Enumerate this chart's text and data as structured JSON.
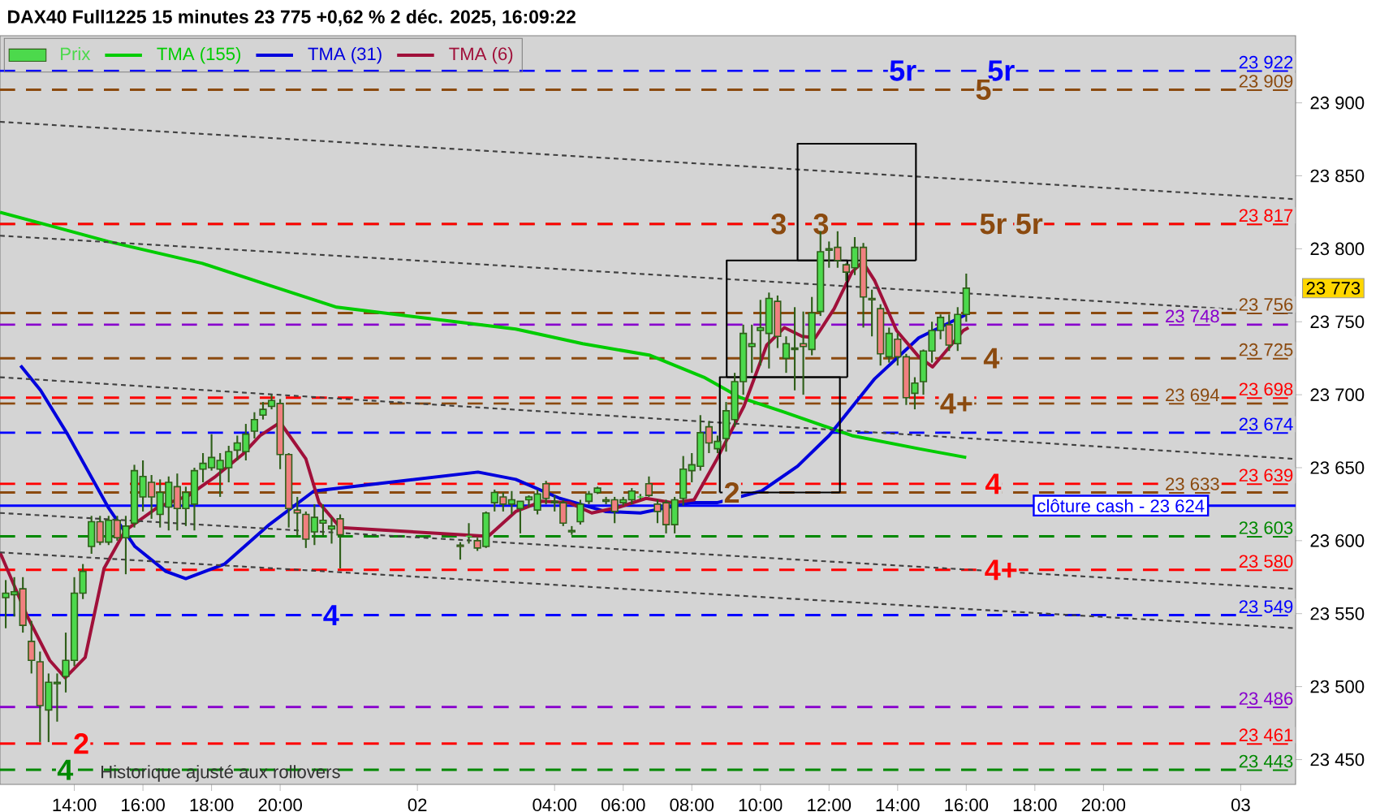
{
  "chart_data": {
    "type": "candlestick",
    "title": "DAX40 Full1225 15 minutes 23 775 +0,62 % 2 déc. 2025, 16:09:22",
    "xlim": [
      "2025-12-01T11:50",
      "2025-12-03T01:36"
    ],
    "ylim": [
      23433,
      23946
    ],
    "xticks": [
      {
        "value": "2025-12-01T14:00",
        "label": "14:00"
      },
      {
        "value": "2025-12-01T16:00",
        "label": "16:00"
      },
      {
        "value": "2025-12-01T18:00",
        "label": "18:00"
      },
      {
        "value": "2025-12-01T20:00",
        "label": "20:00"
      },
      {
        "value": "2025-12-02",
        "label": "02"
      },
      {
        "value": "2025-12-02T04:00",
        "label": "04:00"
      },
      {
        "value": "2025-12-02T06:00",
        "label": "06:00"
      },
      {
        "value": "2025-12-02T08:00",
        "label": "08:00"
      },
      {
        "value": "2025-12-02T10:00",
        "label": "10:00"
      },
      {
        "value": "2025-12-02T12:00",
        "label": "12:00"
      },
      {
        "value": "2025-12-02T14:00",
        "label": "14:00"
      },
      {
        "value": "2025-12-02T16:00",
        "label": "16:00"
      },
      {
        "value": "2025-12-02T18:00",
        "label": "18:00"
      },
      {
        "value": "2025-12-02T20:00",
        "label": "20:00"
      },
      {
        "value": "2025-12-03",
        "label": "03"
      }
    ],
    "yticks": [
      {
        "value": 23450,
        "label": "23 450"
      },
      {
        "value": 23500,
        "label": "23 500"
      },
      {
        "value": 23550,
        "label": "23 550"
      },
      {
        "value": 23600,
        "label": "23 600"
      },
      {
        "value": 23650,
        "label": "23 650"
      },
      {
        "value": 23700,
        "label": "23 700"
      },
      {
        "value": 23750,
        "label": "23 750"
      },
      {
        "value": 23800,
        "label": "23 800"
      },
      {
        "value": 23850,
        "label": "23 850"
      },
      {
        "value": 23900,
        "label": "23 900"
      }
    ],
    "legend": "top left",
    "series": [
      {
        "name": "Prix",
        "type": "candlestick",
        "color": "#4cd94c",
        "x": [
          "2025-12-01T12:00",
          "2025-12-01T12:15",
          "2025-12-01T12:30",
          "2025-12-01T12:45",
          "2025-12-01T13:00",
          "2025-12-01T13:15",
          "2025-12-01T13:30",
          "2025-12-01T13:45",
          "2025-12-01T14:00",
          "2025-12-01T14:15",
          "2025-12-01T14:30",
          "2025-12-01T14:45",
          "2025-12-01T15:00",
          "2025-12-01T15:15",
          "2025-12-01T15:30",
          "2025-12-01T15:45",
          "2025-12-01T16:00",
          "2025-12-01T16:15",
          "2025-12-01T16:30",
          "2025-12-01T16:45",
          "2025-12-01T17:00",
          "2025-12-01T17:15",
          "2025-12-01T17:30",
          "2025-12-01T17:45",
          "2025-12-01T18:00",
          "2025-12-01T18:15",
          "2025-12-01T18:30",
          "2025-12-01T18:45",
          "2025-12-01T19:00",
          "2025-12-01T19:15",
          "2025-12-01T19:30",
          "2025-12-01T19:45",
          "2025-12-01T20:00",
          "2025-12-01T20:15",
          "2025-12-01T20:30",
          "2025-12-01T20:45",
          "2025-12-01T21:00",
          "2025-12-01T21:15",
          "2025-12-01T21:30",
          "2025-12-01T21:45",
          "2025-12-02T01:15",
          "2025-12-02T01:30",
          "2025-12-02T01:45",
          "2025-12-02T02:00",
          "2025-12-02T02:15",
          "2025-12-02T02:30",
          "2025-12-02T02:45",
          "2025-12-02T03:00",
          "2025-12-02T03:15",
          "2025-12-02T03:30",
          "2025-12-02T03:45",
          "2025-12-02T04:00",
          "2025-12-02T04:15",
          "2025-12-02T04:30",
          "2025-12-02T04:45",
          "2025-12-02T05:00",
          "2025-12-02T05:15",
          "2025-12-02T05:30",
          "2025-12-02T05:45",
          "2025-12-02T06:00",
          "2025-12-02T06:15",
          "2025-12-02T06:30",
          "2025-12-02T06:45",
          "2025-12-02T07:00",
          "2025-12-02T07:15",
          "2025-12-02T07:30",
          "2025-12-02T07:45",
          "2025-12-02T08:00",
          "2025-12-02T08:15",
          "2025-12-02T08:30",
          "2025-12-02T08:45",
          "2025-12-02T09:00",
          "2025-12-02T09:15",
          "2025-12-02T09:30",
          "2025-12-02T09:45",
          "2025-12-02T10:00",
          "2025-12-02T10:15",
          "2025-12-02T10:30",
          "2025-12-02T10:45",
          "2025-12-02T11:00",
          "2025-12-02T11:15",
          "2025-12-02T11:30",
          "2025-12-02T11:45",
          "2025-12-02T12:00",
          "2025-12-02T12:15",
          "2025-12-02T12:30",
          "2025-12-02T12:45",
          "2025-12-02T13:00",
          "2025-12-02T13:15",
          "2025-12-02T13:30",
          "2025-12-02T13:45",
          "2025-12-02T14:00",
          "2025-12-02T14:15",
          "2025-12-02T14:30",
          "2025-12-02T14:45",
          "2025-12-02T15:00",
          "2025-12-02T15:15",
          "2025-12-02T15:30",
          "2025-12-02T15:45",
          "2025-12-02T16:00"
        ],
        "colors": [
          "#4cd94c",
          "#4cd94c",
          "#f08080",
          "#f08080",
          "#f08080",
          "#4cd94c",
          "#4cd94c",
          "#4cd94c",
          "#4cd94c",
          "#4cd94c",
          "#4cd94c",
          "#f08080",
          "#4cd94c",
          "#f08080",
          "#4cd94c",
          "#4cd94c",
          "#4cd94c",
          "#f08080",
          "#4cd94c",
          "#4cd94c",
          "#f08080",
          "#4cd94c",
          "#4cd94c",
          "#4cd94c",
          "#4cd94c",
          "#4cd94c",
          "#4cd94c",
          "#4cd94c",
          "#4cd94c",
          "#4cd94c",
          "#4cd94c",
          "#4cd94c",
          "#f08080",
          "#f08080",
          "#f08080",
          "#f08080",
          "#4cd94c",
          "#4cd94c",
          "#4cd94c",
          "#f08080",
          "#f08080",
          "#4cd94c",
          "#f08080",
          "#4cd94c",
          "#4cd94c",
          "#f08080",
          "#4cd94c",
          "#4cd94c",
          "#4cd94c",
          "#4cd94c",
          "#f08080",
          "#f08080",
          "#f08080",
          "#4cd94c",
          "#4cd94c",
          "#4cd94c",
          "#4cd94c",
          "#f08080",
          "#f08080",
          "#4cd94c",
          "#4cd94c",
          "#4cd94c",
          "#f08080",
          "#f08080",
          "#f08080",
          "#4cd94c",
          "#4cd94c",
          "#4cd94c",
          "#4cd94c",
          "#f08080",
          "#4cd94c",
          "#4cd94c",
          "#4cd94c",
          "#4cd94c",
          "#4cd94c",
          "#4cd94c",
          "#4cd94c",
          "#f08080",
          "#4cd94c",
          "#4cd94c",
          "#f08080",
          "#4cd94c",
          "#4cd94c",
          "#4cd94c",
          "#f08080",
          "#f08080",
          "#4cd94c",
          "#f08080",
          "#f08080",
          "#f08080",
          "#4cd94c",
          "#f08080",
          "#f08080",
          "#4cd94c",
          "#4cd94c",
          "#4cd94c",
          "#4cd94c",
          "#f08080",
          "#4cd94c",
          "#4cd94c"
        ],
        "ohlc": [
          [
            23561,
            23573,
            23540,
            23564
          ],
          [
            23563,
            23575,
            23548,
            23565
          ],
          [
            23567,
            23575,
            23537,
            23542
          ],
          [
            23531,
            23545,
            23509,
            23518
          ],
          [
            23517,
            23524,
            23462,
            23487
          ],
          [
            23484,
            23509,
            23462,
            23503
          ],
          [
            23502,
            23509,
            23476,
            23503
          ],
          [
            23507,
            23537,
            23496,
            23518
          ],
          [
            23518,
            23575,
            23514,
            23564
          ],
          [
            23564,
            23584,
            23560,
            23579
          ],
          [
            23596,
            23617,
            23591,
            23613
          ],
          [
            23613,
            23617,
            23597,
            23599
          ],
          [
            23599,
            23617,
            23597,
            23614
          ],
          [
            23614,
            23617,
            23600,
            23602
          ],
          [
            23602,
            23617,
            23577,
            23610
          ],
          [
            23612,
            23652,
            23609,
            23648
          ],
          [
            23630,
            23655,
            23620,
            23644
          ],
          [
            23640,
            23645,
            23615,
            23630
          ],
          [
            23618,
            23642,
            23609,
            23633
          ],
          [
            23623,
            23644,
            23607,
            23640
          ],
          [
            23637,
            23646,
            23607,
            23622
          ],
          [
            23622,
            23637,
            23610,
            23633
          ],
          [
            23625,
            23650,
            23607,
            23648
          ],
          [
            23649,
            23660,
            23640,
            23653
          ],
          [
            23650,
            23673,
            23648,
            23657
          ],
          [
            23649,
            23660,
            23630,
            23655
          ],
          [
            23650,
            23665,
            23640,
            23661
          ],
          [
            23662,
            23672,
            23655,
            23667
          ],
          [
            23661,
            23680,
            23655,
            23673
          ],
          [
            23675,
            23688,
            23670,
            23683
          ],
          [
            23686,
            23695,
            23683,
            23690
          ],
          [
            23692,
            23700,
            23690,
            23696
          ],
          [
            23694,
            23697,
            23649,
            23659
          ],
          [
            23659,
            23660,
            23609,
            23622
          ],
          [
            23621,
            23630,
            23603,
            23619
          ],
          [
            23618,
            23620,
            23595,
            23601
          ],
          [
            23606,
            23625,
            23597,
            23616
          ],
          [
            23612,
            23625,
            23603,
            23614
          ],
          [
            23608,
            23616,
            23598,
            23610
          ],
          [
            23615,
            23618,
            23581,
            23604
          ],
          [
            23597,
            23599,
            23587,
            23596
          ],
          [
            23603,
            23612,
            23598,
            23603
          ],
          [
            23600,
            23602,
            23593,
            23595
          ],
          [
            23596,
            23620,
            23595,
            23619
          ],
          [
            23626,
            23635,
            23620,
            23633
          ],
          [
            23630,
            23633,
            23620,
            23625
          ],
          [
            23625,
            23634,
            23618,
            23628
          ],
          [
            23622,
            23627,
            23605,
            23627
          ],
          [
            23628,
            23631,
            23623,
            23630
          ],
          [
            23621,
            23635,
            23618,
            23632
          ],
          [
            23639,
            23641,
            23625,
            23629
          ],
          [
            23627,
            23631,
            23620,
            23626
          ],
          [
            23626,
            23628,
            23610,
            23612
          ],
          [
            23606,
            23610,
            23604,
            23607
          ],
          [
            23613,
            23628,
            23611,
            23625
          ],
          [
            23627,
            23634,
            23625,
            23632
          ],
          [
            23633,
            23637,
            23632,
            23636
          ],
          [
            23628,
            23630,
            23625,
            23627
          ],
          [
            23628,
            23630,
            23612,
            23620
          ],
          [
            23626,
            23630,
            23624,
            23628
          ],
          [
            23628,
            23636,
            23625,
            23634
          ],
          [
            23630,
            23632,
            23628,
            23630
          ],
          [
            23639,
            23644,
            23630,
            23631
          ],
          [
            23625,
            23628,
            23612,
            23620
          ],
          [
            23626,
            23628,
            23605,
            23611
          ],
          [
            23611,
            23630,
            23605,
            23628
          ],
          [
            23629,
            23658,
            23624,
            23649
          ],
          [
            23648,
            23660,
            23640,
            23652
          ],
          [
            23651,
            23686,
            23648,
            23674
          ],
          [
            23678,
            23682,
            23660,
            23667
          ],
          [
            23663,
            23672,
            23660,
            23668
          ],
          [
            23670,
            23695,
            23661,
            23689
          ],
          [
            23683,
            23715,
            23678,
            23709
          ],
          [
            23709,
            23748,
            23700,
            23742
          ],
          [
            23733,
            23748,
            23715,
            23735
          ],
          [
            23744,
            23765,
            23720,
            23746
          ],
          [
            23742,
            23770,
            23718,
            23766
          ],
          [
            23764,
            23768,
            23732,
            23740
          ],
          [
            23725,
            23740,
            23715,
            23735
          ],
          [
            23731,
            23760,
            23703,
            23732
          ],
          [
            23735,
            23757,
            23700,
            23733
          ],
          [
            23731,
            23767,
            23727,
            23756
          ],
          [
            23757,
            23812,
            23754,
            23798
          ],
          [
            23799,
            23805,
            23787,
            23800
          ],
          [
            23801,
            23812,
            23787,
            23792
          ],
          [
            23789,
            23790,
            23778,
            23784
          ],
          [
            23787,
            23808,
            23782,
            23801
          ],
          [
            23801,
            23804,
            23746,
            23767
          ],
          [
            23766,
            23772,
            23740,
            23765
          ],
          [
            23759,
            23762,
            23720,
            23728
          ],
          [
            23726,
            23746,
            23722,
            23742
          ],
          [
            23738,
            23742,
            23720,
            23726
          ],
          [
            23726,
            23728,
            23693,
            23698
          ],
          [
            23701,
            23712,
            23690,
            23708
          ],
          [
            23709,
            23731,
            23700,
            23730
          ],
          [
            23730,
            23750,
            23722,
            23744
          ],
          [
            23744,
            23755,
            23738,
            23753
          ],
          [
            23748,
            23755,
            23730,
            23734
          ],
          [
            23735,
            23760,
            23730,
            23755
          ],
          [
            23755,
            23783,
            23750,
            23773
          ]
        ]
      },
      {
        "name": "TMA (155)",
        "type": "line",
        "color": "#00cc00",
        "x": [
          "2025-12-01T11:50",
          "2025-12-01T13:25",
          "2025-12-01T14:59",
          "2025-12-01T17:44",
          "2025-12-01T19:41",
          "2025-12-01T21:39",
          "2025-12-02T02:52",
          "2025-12-02T04:49",
          "2025-12-02T06:47",
          "2025-12-02T08:21",
          "2025-12-02T09:25",
          "2025-12-02T10:42",
          "2025-12-02T12:40",
          "2025-12-02T14:37",
          "2025-12-02T16:00"
        ],
        "values": [
          23825,
          23815,
          23805,
          23790,
          23775,
          23760,
          23745,
          23735,
          23727,
          23712,
          23698,
          23688,
          23672,
          23663,
          23657
        ]
      },
      {
        "name": "TMA (31)",
        "type": "line",
        "color": "#0000dd",
        "x": [
          "2025-12-01T12:26",
          "2025-12-01T13:01",
          "2025-12-01T13:48",
          "2025-12-01T14:59",
          "2025-12-01T15:46",
          "2025-12-01T16:40",
          "2025-12-01T17:15",
          "2025-12-01T18:23",
          "2025-12-01T19:41",
          "2025-12-01T20:59",
          "2025-12-02T01:46",
          "2025-12-02T02:52",
          "2025-12-02T04:09",
          "2025-12-02T05:29",
          "2025-12-02T06:30",
          "2025-12-02T07:58",
          "2025-12-02T08:44",
          "2025-12-02T10:02",
          "2025-12-02T11:05",
          "2025-12-02T12:00",
          "2025-12-02T13:20",
          "2025-12-02T14:37",
          "2025-12-02T16:00"
        ],
        "values": [
          23720,
          23703,
          23673,
          23623,
          23596,
          23579,
          23574,
          23584,
          23611,
          23634,
          23647,
          23642,
          23629,
          23620,
          23619,
          23626,
          23626,
          23634,
          23651,
          23672,
          23711,
          23739,
          23755
        ]
      },
      {
        "name": "TMA (6)",
        "type": "line",
        "color": "#a0103a",
        "x": [
          "2025-12-01T11:50",
          "2025-12-01T12:38",
          "2025-12-01T13:17",
          "2025-12-01T13:44",
          "2025-12-01T14:19",
          "2025-12-01T14:52",
          "2025-12-01T15:29",
          "2025-12-01T16:26",
          "2025-12-01T17:20",
          "2025-12-01T18:07",
          "2025-12-01T18:54",
          "2025-12-01T19:25",
          "2025-12-01T20:00",
          "2025-12-01T20:45",
          "2025-12-01T21:08",
          "2025-12-01T21:45",
          "2025-12-02T02:04",
          "2025-12-02T02:52",
          "2025-12-02T03:38",
          "2025-12-02T04:26",
          "2025-12-02T05:05",
          "2025-12-02T05:53",
          "2025-12-02T06:40",
          "2025-12-02T07:27",
          "2025-12-02T08:04",
          "2025-12-02T08:44",
          "2025-12-02T09:31",
          "2025-12-02T10:11",
          "2025-12-02T10:42",
          "2025-12-02T11:13",
          "2025-12-02T11:36",
          "2025-12-02T12:09",
          "2025-12-02T12:40",
          "2025-12-02T12:59",
          "2025-12-02T13:20",
          "2025-12-02T13:58",
          "2025-12-02T14:37",
          "2025-12-02T15:01",
          "2025-12-02T15:55",
          "2025-12-02T16:04"
        ],
        "values": [
          23592,
          23548,
          23518,
          23506,
          23520,
          23581,
          23607,
          23623,
          23631,
          23644,
          23659,
          23672,
          23681,
          23656,
          23626,
          23609,
          23603,
          23620,
          23627,
          23626,
          23619,
          23623,
          23629,
          23626,
          23628,
          23656,
          23692,
          23734,
          23746,
          23740,
          23739,
          23759,
          23784,
          23791,
          23778,
          23744,
          23726,
          23719,
          23744,
          23746
        ]
      },
      {
        "type": "line",
        "color": "#404040",
        "line_style": "dashed",
        "x": [
          "2025-12-01T11:50",
          "2025-12-03T01:36"
        ],
        "values": [
          23887,
          23834
        ]
      },
      {
        "type": "line",
        "color": "#404040",
        "line_style": "dashed",
        "x": [
          "2025-12-01T11:50",
          "2025-12-03T01:36"
        ],
        "values": [
          23809,
          23756
        ]
      },
      {
        "type": "line",
        "color": "#404040",
        "line_style": "dashed",
        "x": [
          "2025-12-01T11:50",
          "2025-12-03T01:36"
        ],
        "values": [
          23712,
          23656
        ]
      },
      {
        "type": "line",
        "color": "#404040",
        "line_style": "dashed",
        "x": [
          "2025-12-01T11:50",
          "2025-12-03T01:36"
        ],
        "values": [
          23619,
          23567
        ]
      },
      {
        "type": "line",
        "color": "#404040",
        "line_style": "dashed",
        "x": [
          "2025-12-01T11:50",
          "2025-12-03T01:36"
        ],
        "values": [
          23592,
          23540
        ]
      },
      {
        "type": "line",
        "color": "#000000",
        "x": [
          "2025-12-02T08:49",
          "2025-12-02T08:49",
          "2025-12-02T12:19",
          "2025-12-02T12:19"
        ],
        "values": [
          23633,
          23712,
          23712,
          23633
        ]
      },
      {
        "type": "line",
        "color": "#000000",
        "x": [
          "2025-12-02T08:49",
          "2025-12-02T12:19"
        ],
        "values": [
          23633,
          23633
        ]
      },
      {
        "type": "line",
        "color": "#000000",
        "x": [
          "2025-12-02T09:01",
          "2025-12-02T09:01",
          "2025-12-02T12:32",
          "2025-12-02T12:32"
        ],
        "values": [
          23712,
          23792,
          23792,
          23712
        ]
      },
      {
        "type": "line",
        "color": "#000000",
        "x": [
          "2025-12-02T09:01",
          "2025-12-02T12:32"
        ],
        "values": [
          23712,
          23712
        ]
      },
      {
        "type": "line",
        "color": "#000000",
        "x": [
          "2025-12-02T11:05",
          "2025-12-02T11:05",
          "2025-12-02T14:32",
          "2025-12-02T14:32"
        ],
        "values": [
          23792,
          23872,
          23872,
          23792
        ]
      },
      {
        "type": "line",
        "color": "#000000",
        "x": [
          "2025-12-02T11:05",
          "2025-12-02T14:32"
        ],
        "values": [
          23792,
          23792
        ]
      }
    ],
    "ref_lines": [
      {
        "axis": "y",
        "value": 23922,
        "label": "23 922",
        "color": "#0000ff",
        "line_style": "dashed"
      },
      {
        "axis": "y",
        "value": 23909,
        "label": "23 909",
        "color": "#8b4a0f",
        "line_style": "dashed"
      },
      {
        "axis": "y",
        "value": 23817,
        "color": "#8b4a0f",
        "line_style": "dashed"
      },
      {
        "axis": "y",
        "value": 23817,
        "label": "23 817",
        "color": "#ff0000",
        "line_style": "dashed"
      },
      {
        "axis": "y",
        "value": 23756,
        "label": "23 756",
        "color": "#8b4a0f",
        "line_style": "dashed"
      },
      {
        "axis": "y",
        "value": 23748,
        "label": "23 748",
        "color": "#8800cc",
        "line_style": "dashed"
      },
      {
        "axis": "y",
        "value": 23725,
        "label": "23 725",
        "color": "#8b4a0f",
        "line_style": "dashed"
      },
      {
        "axis": "y",
        "value": 23698,
        "label": "23 698",
        "color": "#ff0000",
        "line_style": "dashed"
      },
      {
        "axis": "y",
        "value": 23694,
        "label": "23 694",
        "color": "#8b4a0f",
        "line_style": "dashed"
      },
      {
        "axis": "y",
        "value": 23674,
        "label": "23 674",
        "color": "#0000ff",
        "line_style": "dashed"
      },
      {
        "axis": "y",
        "value": 23639,
        "label": "23 639",
        "color": "#ff0000",
        "line_style": "dashed"
      },
      {
        "axis": "y",
        "value": 23633,
        "label": "23 633",
        "color": "#8b4a0f",
        "line_style": "dashed"
      },
      {
        "axis": "y",
        "value": 23624,
        "label": "clôture cash - 23 624",
        "color": "#0000ff",
        "line_style": "solid"
      },
      {
        "axis": "y",
        "value": 23603,
        "label": "23 603",
        "color": "#008800",
        "line_style": "dashed"
      },
      {
        "axis": "y",
        "value": 23580,
        "label": "23 580",
        "color": "#ff0000",
        "line_style": "dashed"
      },
      {
        "axis": "y",
        "value": 23549,
        "label": "23 549",
        "color": "#0000ff",
        "line_style": "dashed"
      },
      {
        "axis": "y",
        "value": 23486,
        "label": "23 486",
        "color": "#8800cc",
        "line_style": "dashed"
      },
      {
        "axis": "y",
        "value": 23461,
        "label": "23 461",
        "color": "#ff0000",
        "line_style": "dashed"
      },
      {
        "axis": "y",
        "value": 23443,
        "label": "23 443",
        "color": "#008800",
        "line_style": "dashed"
      }
    ],
    "annotations": [
      {
        "text": "5r",
        "x": "2025-12-02T14:09",
        "y": 23922
      },
      {
        "text": "5r",
        "x": "2025-12-02T17:01",
        "y": 23922
      },
      {
        "text": "5",
        "x": "2025-12-02T16:30",
        "y": 23909
      },
      {
        "text": "3",
        "x": "2025-12-02T10:32",
        "y": 23817
      },
      {
        "text": "3",
        "x": "2025-12-02T11:46",
        "y": 23817
      },
      {
        "text": "5r",
        "x": "2025-12-02T16:47",
        "y": 23817
      },
      {
        "text": "5r",
        "x": "2025-12-02T17:50",
        "y": 23817
      },
      {
        "text": "4",
        "x": "2025-12-02T16:44",
        "y": 23725
      },
      {
        "text": "4+",
        "x": "2025-12-02T15:43",
        "y": 23694
      },
      {
        "text": "4",
        "x": "2025-12-02T16:47",
        "y": 23639
      },
      {
        "text": "2",
        "x": "2025-12-02T09:10",
        "y": 23633
      },
      {
        "text": "4+",
        "x": "2025-12-02T17:01",
        "y": 23580
      },
      {
        "text": "4",
        "x": "2025-12-01T21:29",
        "y": 23549
      },
      {
        "text": "2",
        "x": "2025-12-01T14:12",
        "y": 23461
      },
      {
        "text": "4",
        "x": "2025-12-01T13:44",
        "y": 23443
      },
      "23 773",
      "Historique ajusté aux rollovers"
    ]
  }
}
